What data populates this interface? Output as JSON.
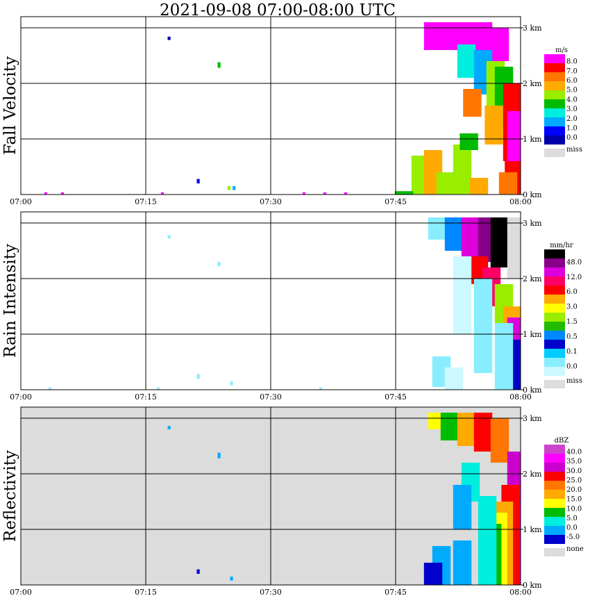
{
  "title": "2021-09-08   07:00-08:00 UTC",
  "x_ticks": [
    "07:00",
    "07:15",
    "07:30",
    "07:45",
    "08:00"
  ],
  "height_ticks": [
    "3 km",
    "2 km",
    "1 km",
    "0 km"
  ],
  "colors": {
    "missing": "#dcdcdc",
    "grid": "#000000",
    "background": "#ffffff"
  },
  "chart_data": [
    {
      "type": "heatmap",
      "ylabel": "Fall Velocity",
      "x_range": [
        "07:00",
        "08:00"
      ],
      "y_range_km": [
        0,
        3.0
      ],
      "colorbar": {
        "unit": "m/s",
        "labels": [
          "8.0",
          "7.0",
          "6.0",
          "5.0",
          "4.0",
          "3.0",
          "2.0",
          "1.0",
          "0.0"
        ],
        "colors": [
          "#ff00ff",
          "#ff0000",
          "#ff7700",
          "#ffaa00",
          "#99ee00",
          "#00bb00",
          "#00eedd",
          "#00aaff",
          "#0000ff",
          "#0000aa"
        ],
        "missing_label": "miss"
      },
      "echoes": [
        {
          "t": 49.5,
          "h0": 2.6,
          "h1": 3.1,
          "color": "#ff00ff"
        },
        {
          "t": 51.5,
          "h0": 2.6,
          "h1": 3.1,
          "color": "#ff00ff"
        },
        {
          "t": 53.5,
          "h0": 2.7,
          "h1": 3.1,
          "color": "#ff00ff"
        },
        {
          "t": 55.5,
          "h0": 2.6,
          "h1": 3.1,
          "color": "#ff00ff"
        },
        {
          "t": 57.5,
          "h0": 2.4,
          "h1": 3.0,
          "color": "#ff00ff"
        },
        {
          "t": 53.5,
          "h0": 2.1,
          "h1": 2.7,
          "color": "#00eedd"
        },
        {
          "t": 55.5,
          "h0": 1.8,
          "h1": 2.6,
          "color": "#00aaff"
        },
        {
          "t": 57.0,
          "h0": 1.5,
          "h1": 2.4,
          "color": "#99ee00"
        },
        {
          "t": 58.0,
          "h0": 1.2,
          "h1": 2.3,
          "color": "#00bb00"
        },
        {
          "t": 59.0,
          "h0": 0.6,
          "h1": 2.0,
          "color": "#ff0000"
        },
        {
          "t": 59.5,
          "h0": 0.0,
          "h1": 1.5,
          "color": "#ff00ff"
        },
        {
          "t": 59.2,
          "h0": 0.0,
          "h1": 0.6,
          "color": "#ff0000"
        },
        {
          "t": 58.5,
          "h0": 0.0,
          "h1": 0.4,
          "color": "#ff7700"
        },
        {
          "t": 54.2,
          "h0": 1.4,
          "h1": 1.9,
          "color": "#ff7700"
        },
        {
          "t": 56.8,
          "h0": 0.9,
          "h1": 1.6,
          "color": "#ffaa00"
        },
        {
          "t": 48.0,
          "h0": 0.0,
          "h1": 0.7,
          "color": "#99ee00"
        },
        {
          "t": 49.5,
          "h0": 0.0,
          "h1": 0.8,
          "color": "#ffaa00"
        },
        {
          "t": 51.0,
          "h0": 0.0,
          "h1": 0.4,
          "color": "#99ee00"
        },
        {
          "t": 53.0,
          "h0": 0.0,
          "h1": 0.9,
          "color": "#99ee00"
        },
        {
          "t": 55.0,
          "h0": 0.0,
          "h1": 0.3,
          "color": "#ffaa00"
        },
        {
          "t": 53.8,
          "h0": 0.8,
          "h1": 1.1,
          "color": "#00bb00"
        },
        {
          "t": 17.8,
          "h0": 2.78,
          "h1": 2.84,
          "color": "#0000aa"
        },
        {
          "t": 23.8,
          "h0": 2.28,
          "h1": 2.38,
          "color": "#00bb00"
        },
        {
          "t": 21.3,
          "h0": 0.2,
          "h1": 0.28,
          "color": "#0000ff"
        },
        {
          "t": 25.0,
          "h0": 0.08,
          "h1": 0.15,
          "color": "#99ee00"
        },
        {
          "t": 25.6,
          "h0": 0.08,
          "h1": 0.15,
          "color": "#00aaff"
        },
        {
          "t": 3.0,
          "h0": 0.0,
          "h1": 0.04,
          "color": "#ff00ff"
        },
        {
          "t": 5.0,
          "h0": 0.0,
          "h1": 0.04,
          "color": "#ff00ff"
        },
        {
          "t": 17.0,
          "h0": 0.0,
          "h1": 0.04,
          "color": "#ff00ff"
        },
        {
          "t": 34.0,
          "h0": 0.0,
          "h1": 0.04,
          "color": "#ff00ff"
        },
        {
          "t": 36.5,
          "h0": 0.0,
          "h1": 0.04,
          "color": "#ff00ff"
        },
        {
          "t": 39.0,
          "h0": 0.0,
          "h1": 0.04,
          "color": "#ff00ff"
        },
        {
          "t": 46.0,
          "h0": 0.0,
          "h1": 0.06,
          "color": "#00bb00"
        }
      ]
    },
    {
      "type": "heatmap",
      "ylabel": "Rain Intensity",
      "x_range": [
        "07:00",
        "08:00"
      ],
      "y_range_km": [
        0,
        3.0
      ],
      "colorbar": {
        "unit": "mm/hr",
        "labels": [
          "48.0",
          "12.0",
          "6.0",
          "3.0",
          "1.5",
          "0.5",
          "0.1",
          "0.0"
        ],
        "colors": [
          "#000000",
          "#880088",
          "#dd00dd",
          "#ff0066",
          "#ff0000",
          "#ffaa00",
          "#ffff00",
          "#99ee00",
          "#22bb00",
          "#0088ff",
          "#0000cc",
          "#00ccff",
          "#88eeff",
          "#ccf8ff"
        ],
        "missing_label": "miss"
      },
      "echoes": [
        {
          "t": 50.0,
          "h0": 2.7,
          "h1": 3.1,
          "color": "#88eeff"
        },
        {
          "t": 52.0,
          "h0": 2.5,
          "h1": 3.1,
          "color": "#0088ff"
        },
        {
          "t": 54.0,
          "h0": 2.3,
          "h1": 3.1,
          "color": "#dd00dd"
        },
        {
          "t": 56.0,
          "h0": 2.3,
          "h1": 3.1,
          "color": "#880088"
        },
        {
          "t": 57.5,
          "h0": 2.2,
          "h1": 3.1,
          "color": "#000000"
        },
        {
          "t": 59.5,
          "h0": 2.0,
          "h1": 3.1,
          "color": "#dcdcdc"
        },
        {
          "t": 55.0,
          "h0": 1.9,
          "h1": 2.4,
          "color": "#ff0000"
        },
        {
          "t": 56.5,
          "h0": 1.5,
          "h1": 2.2,
          "color": "#ff0066"
        },
        {
          "t": 58.0,
          "h0": 1.2,
          "h1": 1.9,
          "color": "#99ee00"
        },
        {
          "t": 59.0,
          "h0": 0.9,
          "h1": 1.5,
          "color": "#ffaa00"
        },
        {
          "t": 59.5,
          "h0": 0.0,
          "h1": 1.3,
          "color": "#dd00dd"
        },
        {
          "t": 59.0,
          "h0": 0.0,
          "h1": 0.9,
          "color": "#0000cc"
        },
        {
          "t": 58.0,
          "h0": 0.0,
          "h1": 1.2,
          "color": "#88eeff"
        },
        {
          "t": 55.5,
          "h0": 0.3,
          "h1": 2.0,
          "color": "#88eeff"
        },
        {
          "t": 53.0,
          "h0": 1.0,
          "h1": 2.4,
          "color": "#ccf8ff"
        },
        {
          "t": 50.5,
          "h0": 0.05,
          "h1": 0.6,
          "color": "#88eeff"
        },
        {
          "t": 52.0,
          "h0": 0.0,
          "h1": 0.4,
          "color": "#ccf8ff"
        },
        {
          "t": 17.8,
          "h0": 2.72,
          "h1": 2.78,
          "color": "#88eeff"
        },
        {
          "t": 23.8,
          "h0": 2.22,
          "h1": 2.3,
          "color": "#88eeff"
        },
        {
          "t": 21.3,
          "h0": 0.2,
          "h1": 0.28,
          "color": "#88eeff"
        },
        {
          "t": 25.3,
          "h0": 0.08,
          "h1": 0.15,
          "color": "#88eeff"
        },
        {
          "t": 3.5,
          "h0": 0.0,
          "h1": 0.04,
          "color": "#88eeff"
        },
        {
          "t": 16.5,
          "h0": 0.0,
          "h1": 0.04,
          "color": "#88eeff"
        },
        {
          "t": 36.0,
          "h0": 0.0,
          "h1": 0.04,
          "color": "#88eeff"
        }
      ]
    },
    {
      "type": "heatmap",
      "ylabel": "Reflectivity",
      "x_range": [
        "07:00",
        "08:00"
      ],
      "y_range_km": [
        0,
        3.0
      ],
      "background": "#dcdcdc",
      "colorbar": {
        "unit": "dBZ",
        "labels": [
          "40.0",
          "35.0",
          "30.0",
          "25.0",
          "20.0",
          "15.0",
          "10.0",
          "5.0",
          "0.0",
          "-5.0"
        ],
        "colors": [
          "#cc44cc",
          "#ff00ff",
          "#cc00cc",
          "#ff0000",
          "#ff7700",
          "#ffaa00",
          "#ffff00",
          "#00bb00",
          "#00eedd",
          "#00aaff",
          "#0000cc"
        ],
        "missing_label": "none"
      },
      "echoes": [
        {
          "t": 50.0,
          "h0": 2.8,
          "h1": 3.1,
          "color": "#ffff00"
        },
        {
          "t": 51.5,
          "h0": 2.6,
          "h1": 3.1,
          "color": "#00bb00"
        },
        {
          "t": 53.5,
          "h0": 2.5,
          "h1": 3.1,
          "color": "#ffaa00"
        },
        {
          "t": 55.5,
          "h0": 2.4,
          "h1": 3.1,
          "color": "#ff0000"
        },
        {
          "t": 57.5,
          "h0": 2.2,
          "h1": 3.0,
          "color": "#ff7700"
        },
        {
          "t": 59.5,
          "h0": 0.0,
          "h1": 2.4,
          "color": "#cc00cc"
        },
        {
          "t": 58.8,
          "h0": 0.0,
          "h1": 1.8,
          "color": "#ff0000"
        },
        {
          "t": 58.0,
          "h0": 0.0,
          "h1": 1.5,
          "color": "#ffaa00"
        },
        {
          "t": 57.3,
          "h0": 0.0,
          "h1": 1.3,
          "color": "#ffff00"
        },
        {
          "t": 56.6,
          "h0": 0.0,
          "h1": 1.1,
          "color": "#00bb00"
        },
        {
          "t": 56.0,
          "h0": 0.0,
          "h1": 1.6,
          "color": "#00eedd"
        },
        {
          "t": 54.0,
          "h0": 1.5,
          "h1": 2.2,
          "color": "#00eedd"
        },
        {
          "t": 53.0,
          "h0": 1.0,
          "h1": 1.8,
          "color": "#00aaff"
        },
        {
          "t": 50.5,
          "h0": 0.0,
          "h1": 0.7,
          "color": "#00aaff"
        },
        {
          "t": 49.5,
          "h0": 0.0,
          "h1": 0.4,
          "color": "#0000cc"
        },
        {
          "t": 53.0,
          "h0": 0.0,
          "h1": 0.8,
          "color": "#00aaff"
        },
        {
          "t": 17.8,
          "h0": 2.8,
          "h1": 2.86,
          "color": "#00aaff"
        },
        {
          "t": 23.8,
          "h0": 2.28,
          "h1": 2.38,
          "color": "#00aaff"
        },
        {
          "t": 21.3,
          "h0": 0.2,
          "h1": 0.28,
          "color": "#0000cc"
        },
        {
          "t": 25.3,
          "h0": 0.08,
          "h1": 0.15,
          "color": "#00aaff"
        }
      ]
    }
  ]
}
